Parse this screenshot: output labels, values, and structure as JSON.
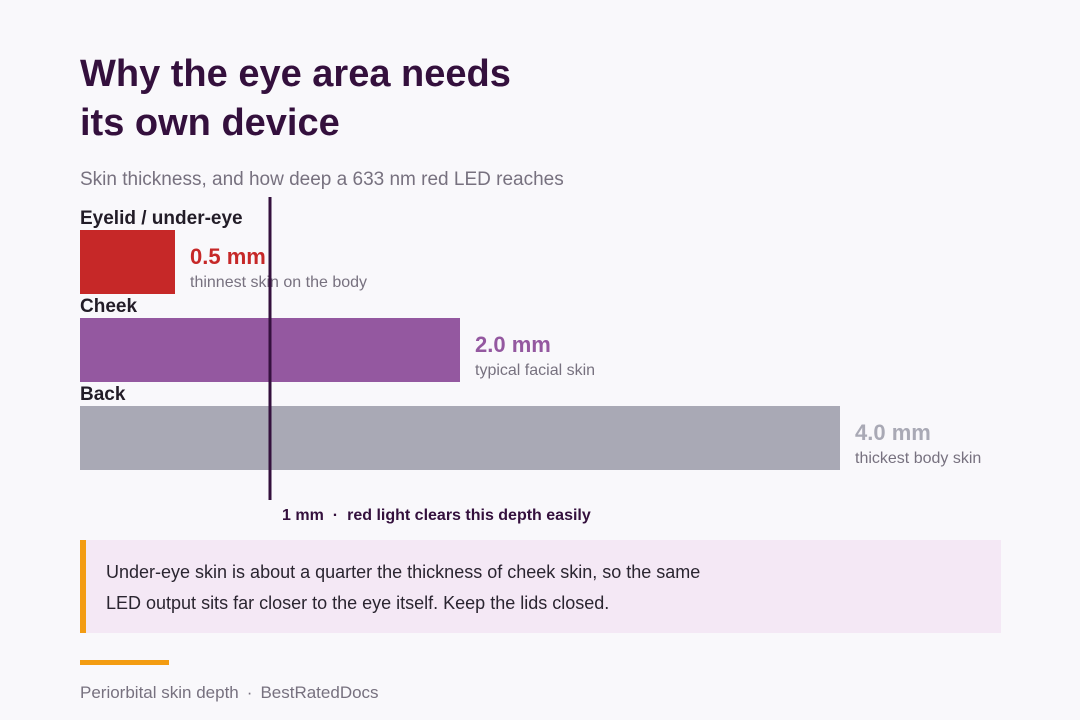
{
  "header": {
    "title_line1": "Why the eye area needs",
    "title_line2": "its own device",
    "subtitle": "Skin thickness, and how deep a 633 nm red LED reaches"
  },
  "chart_data": {
    "type": "bar",
    "orientation": "horizontal",
    "unit": "mm",
    "xlim": [
      0,
      4.0
    ],
    "categories": [
      "Eyelid / under-eye",
      "Cheek",
      "Back"
    ],
    "values": [
      0.5,
      2.0,
      4.0
    ],
    "value_labels": [
      "0.5 mm",
      "2.0 mm",
      "4.0 mm"
    ],
    "notes": [
      "thinnest skin on the body",
      "typical facial skin",
      "thickest body skin"
    ],
    "colors": [
      "#c62828",
      "#9458a0",
      "#a9a9b5"
    ],
    "reference_line": {
      "value": 1.0,
      "label_value": "1 mm",
      "label_separator": "·",
      "label_text": "red light clears this depth easily",
      "color": "#34103d"
    }
  },
  "callout": {
    "line1": "Under-eye skin is about a quarter the thickness of cheek skin, so the same",
    "line2": "LED output sits far closer to the eye itself. Keep the lids closed.",
    "accent_color": "#f39c12",
    "background_color": "#f4e8f5"
  },
  "footer": {
    "left": "Periorbital skin depth",
    "separator": "·",
    "right": "BestRatedDocs"
  }
}
